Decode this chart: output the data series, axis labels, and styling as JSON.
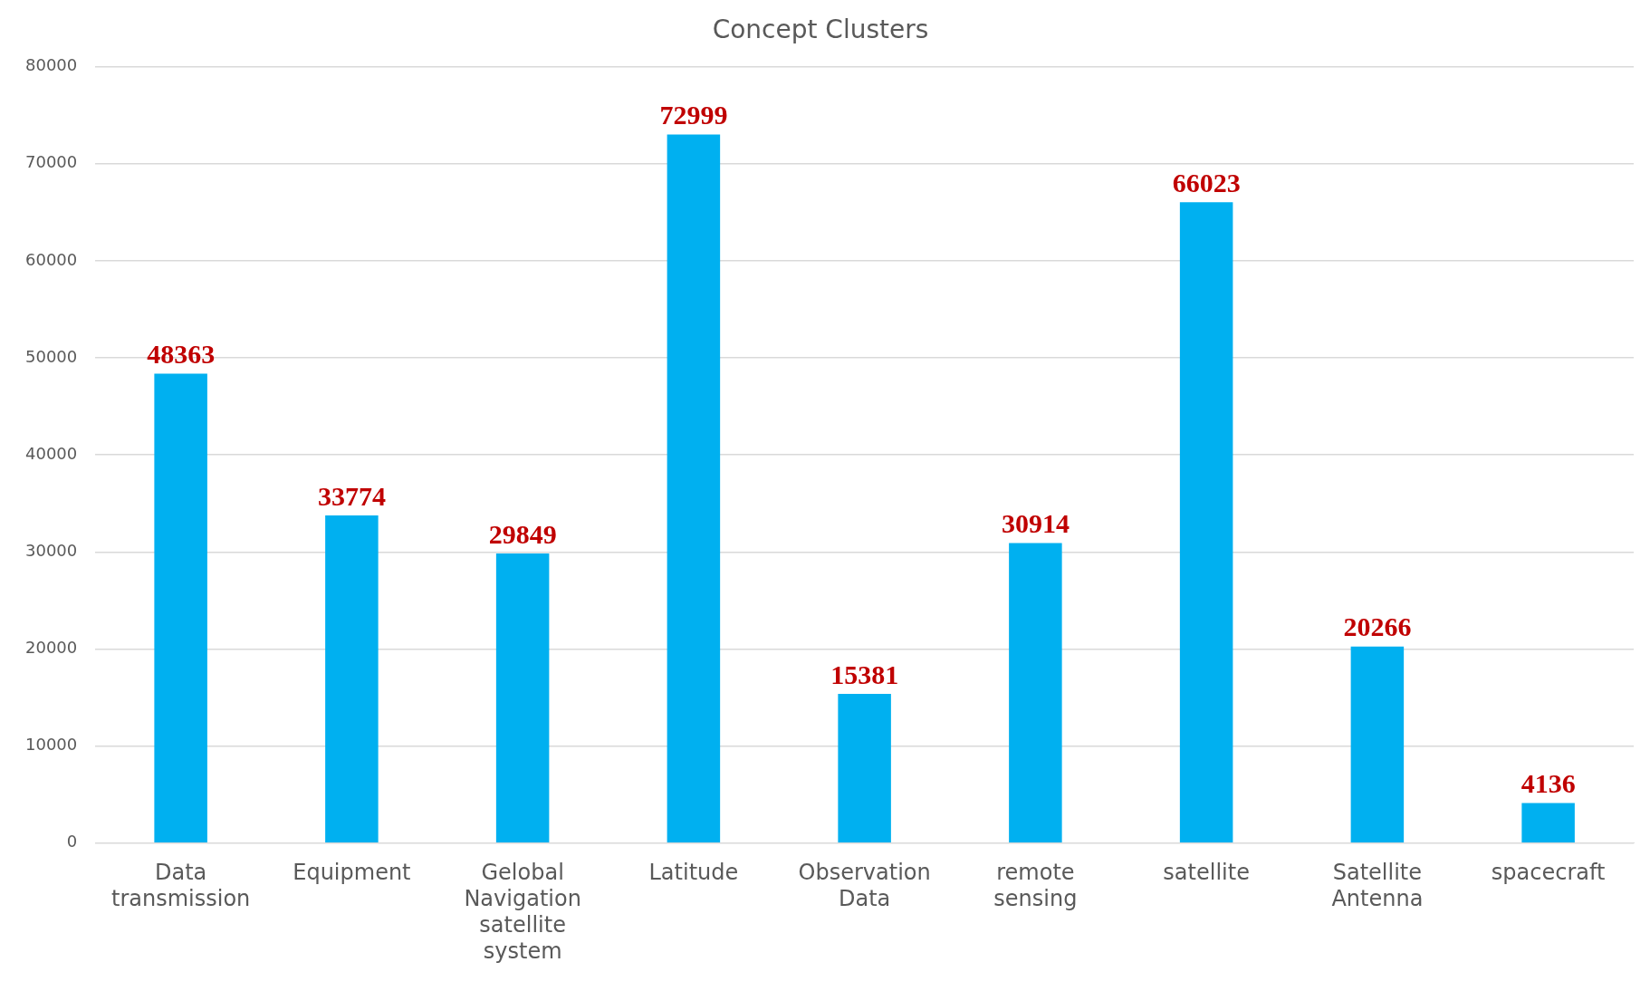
{
  "chart_data": {
    "type": "bar",
    "title": "Concept Clusters",
    "categories": [
      "Data transmission",
      "Equipment",
      "Gelobal Navigation satellite system",
      "Latitude",
      "Observation Data",
      "remote sensing",
      "satellite",
      "Satellite Antenna",
      "spacecraft"
    ],
    "values": [
      48363,
      33774,
      29849,
      72999,
      15381,
      30914,
      66023,
      20266,
      4136
    ],
    "color": "#00b0f0",
    "ylim": [
      0,
      80000
    ],
    "yticks": [
      0,
      10000,
      20000,
      30000,
      40000,
      50000,
      60000,
      70000,
      80000
    ],
    "grid": "y",
    "data_labels": true
  }
}
